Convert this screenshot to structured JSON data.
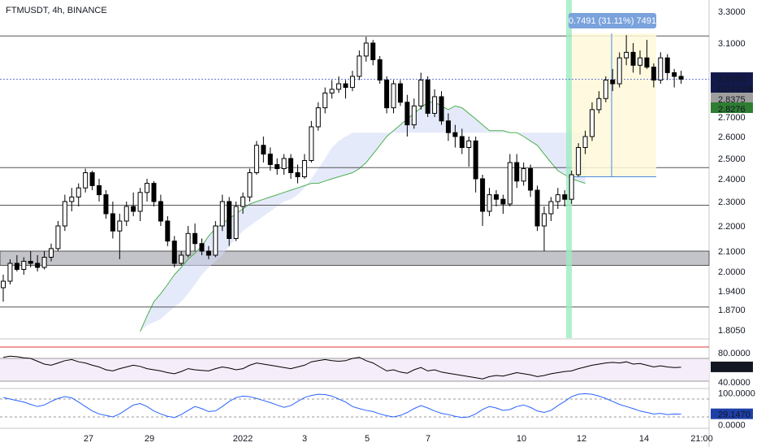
{
  "header": {
    "title": "FTMUSDT, 4h, BINANCE"
  },
  "colors": {
    "bull_fill": "#ffffff",
    "bear_fill": "#000000",
    "candle_border": "#000000",
    "cloud_green": "#4caf50",
    "cloud_fill": "#cfd8f5",
    "zone_fill": "#a9a9b3",
    "highlight_band": "#9eebc0",
    "measure_fill": "#fff9d9",
    "measure_line": "#4a8bdb",
    "rsi_line": "#000000",
    "rsi_top": "#e53935",
    "stoch_line": "#2962ff",
    "last_price": "#131a4a",
    "cloud_tag": "#2e7d32",
    "base_tag": "#9e9e9e",
    "pane_border": "#c7c7c7"
  },
  "chart_data": {
    "type": "candlestick",
    "symbol": "FTMUSDT",
    "interval": "4h",
    "exchange": "BINANCE",
    "price_axis": {
      "ticks": [
        "3.3000",
        "3.1000",
        "2.7000",
        "2.6000",
        "2.5000",
        "2.4000",
        "2.3000",
        "2.2000",
        "2.1000",
        "2.0000",
        "1.9400",
        "1.8700",
        "1.8050"
      ]
    },
    "time_axis": {
      "ticks": [
        "27",
        "29",
        "2022",
        "3",
        "5",
        "7",
        "10",
        "12",
        "14",
        "21:00"
      ]
    },
    "horizontal_levels": [
      3.145,
      2.455,
      2.285,
      1.88
    ],
    "support_zone": [
      2.03,
      2.1
    ],
    "measure_label": "0.7491 (31.11%) 7491",
    "measure_range": {
      "from": 2.41,
      "to": 3.16
    },
    "price_labels": {
      "last": "2.9046",
      "countdown": "01:41:08",
      "base": "2.8375",
      "cloud": "2.8276"
    },
    "candles": [
      [
        1.95,
        1.99,
        1.9,
        1.97
      ],
      [
        1.97,
        2.06,
        1.96,
        2.04
      ],
      [
        2.04,
        2.08,
        2.0,
        2.01
      ],
      [
        2.01,
        2.07,
        1.99,
        2.05
      ],
      [
        2.05,
        2.1,
        2.02,
        2.04
      ],
      [
        2.04,
        2.08,
        2.0,
        2.02
      ],
      [
        2.02,
        2.1,
        2.01,
        2.07
      ],
      [
        2.07,
        2.13,
        2.05,
        2.11
      ],
      [
        2.11,
        2.22,
        2.1,
        2.2
      ],
      [
        2.2,
        2.33,
        2.18,
        2.3
      ],
      [
        2.3,
        2.36,
        2.26,
        2.32
      ],
      [
        2.32,
        2.38,
        2.28,
        2.36
      ],
      [
        2.36,
        2.45,
        2.34,
        2.43
      ],
      [
        2.43,
        2.44,
        2.35,
        2.37
      ],
      [
        2.37,
        2.4,
        2.3,
        2.33
      ],
      [
        2.33,
        2.35,
        2.23,
        2.25
      ],
      [
        2.25,
        2.3,
        2.15,
        2.18
      ],
      [
        2.18,
        2.25,
        2.06,
        2.22
      ],
      [
        2.22,
        2.3,
        2.2,
        2.28
      ],
      [
        2.28,
        2.34,
        2.24,
        2.26
      ],
      [
        2.26,
        2.36,
        2.22,
        2.34
      ],
      [
        2.34,
        2.4,
        2.3,
        2.38
      ],
      [
        2.38,
        2.39,
        2.28,
        2.3
      ],
      [
        2.3,
        2.33,
        2.2,
        2.22
      ],
      [
        2.22,
        2.24,
        2.12,
        2.14
      ],
      [
        2.14,
        2.16,
        2.02,
        2.04
      ],
      [
        2.04,
        2.1,
        2.03,
        2.08
      ],
      [
        2.08,
        2.2,
        2.07,
        2.17
      ],
      [
        2.17,
        2.21,
        2.1,
        2.13
      ],
      [
        2.13,
        2.15,
        2.08,
        2.1
      ],
      [
        2.1,
        2.12,
        2.06,
        2.08
      ],
      [
        2.08,
        2.22,
        2.07,
        2.2
      ],
      [
        2.2,
        2.33,
        2.18,
        2.3
      ],
      [
        2.3,
        2.32,
        2.12,
        2.15
      ],
      [
        2.15,
        2.3,
        2.14,
        2.28
      ],
      [
        2.28,
        2.34,
        2.25,
        2.32
      ],
      [
        2.32,
        2.45,
        2.3,
        2.43
      ],
      [
        2.43,
        2.58,
        2.42,
        2.56
      ],
      [
        2.56,
        2.6,
        2.48,
        2.52
      ],
      [
        2.52,
        2.55,
        2.44,
        2.47
      ],
      [
        2.47,
        2.5,
        2.42,
        2.45
      ],
      [
        2.45,
        2.52,
        2.42,
        2.5
      ],
      [
        2.5,
        2.52,
        2.4,
        2.43
      ],
      [
        2.43,
        2.47,
        2.38,
        2.41
      ],
      [
        2.41,
        2.52,
        2.4,
        2.49
      ],
      [
        2.49,
        2.68,
        2.48,
        2.65
      ],
      [
        2.65,
        2.78,
        2.63,
        2.75
      ],
      [
        2.75,
        2.86,
        2.72,
        2.83
      ],
      [
        2.83,
        2.9,
        2.8,
        2.85
      ],
      [
        2.85,
        2.92,
        2.83,
        2.88
      ],
      [
        2.88,
        2.9,
        2.8,
        2.86
      ],
      [
        2.86,
        2.95,
        2.84,
        2.92
      ],
      [
        2.92,
        3.06,
        2.9,
        3.03
      ],
      [
        3.03,
        3.14,
        3.0,
        3.1
      ],
      [
        3.1,
        3.12,
        2.98,
        3.01
      ],
      [
        3.01,
        3.03,
        2.88,
        2.9
      ],
      [
        2.9,
        2.92,
        2.72,
        2.75
      ],
      [
        2.75,
        2.9,
        2.72,
        2.88
      ],
      [
        2.88,
        2.9,
        2.76,
        2.78
      ],
      [
        2.78,
        2.82,
        2.6,
        2.66
      ],
      [
        2.66,
        2.8,
        2.64,
        2.76
      ],
      [
        2.76,
        2.94,
        2.74,
        2.9
      ],
      [
        2.9,
        2.92,
        2.7,
        2.72
      ],
      [
        2.72,
        2.85,
        2.7,
        2.81
      ],
      [
        2.81,
        2.84,
        2.66,
        2.68
      ],
      [
        2.68,
        2.72,
        2.58,
        2.62
      ],
      [
        2.62,
        2.66,
        2.55,
        2.6
      ],
      [
        2.6,
        2.64,
        2.52,
        2.55
      ],
      [
        2.55,
        2.6,
        2.46,
        2.58
      ],
      [
        2.58,
        2.6,
        2.34,
        2.4
      ],
      [
        2.4,
        2.42,
        2.2,
        2.26
      ],
      [
        2.26,
        2.36,
        2.24,
        2.33
      ],
      [
        2.33,
        2.35,
        2.28,
        2.31
      ],
      [
        2.31,
        2.33,
        2.25,
        2.29
      ],
      [
        2.29,
        2.52,
        2.28,
        2.48
      ],
      [
        2.48,
        2.52,
        2.36,
        2.39
      ],
      [
        2.39,
        2.48,
        2.37,
        2.45
      ],
      [
        2.45,
        2.47,
        2.32,
        2.35
      ],
      [
        2.35,
        2.37,
        2.18,
        2.2
      ],
      [
        2.2,
        2.28,
        2.1,
        2.25
      ],
      [
        2.25,
        2.32,
        2.22,
        2.3
      ],
      [
        2.3,
        2.36,
        2.27,
        2.33
      ],
      [
        2.33,
        2.35,
        2.28,
        2.31
      ],
      [
        2.31,
        2.44,
        2.29,
        2.42
      ],
      [
        2.42,
        2.57,
        2.41,
        2.55
      ],
      [
        2.55,
        2.63,
        2.52,
        2.6
      ],
      [
        2.6,
        2.78,
        2.58,
        2.74
      ],
      [
        2.74,
        2.84,
        2.72,
        2.8
      ],
      [
        2.8,
        2.92,
        2.78,
        2.9
      ],
      [
        2.9,
        2.96,
        2.84,
        2.88
      ],
      [
        2.88,
        3.05,
        2.86,
        3.02
      ],
      [
        3.02,
        3.15,
        2.98,
        3.05
      ],
      [
        3.05,
        3.1,
        2.94,
        2.98
      ],
      [
        2.98,
        3.06,
        2.93,
        3.02
      ],
      [
        3.02,
        3.12,
        2.96,
        2.97
      ],
      [
        2.97,
        2.99,
        2.86,
        2.9
      ],
      [
        2.9,
        3.05,
        2.88,
        3.02
      ],
      [
        3.02,
        3.04,
        2.9,
        2.94
      ],
      [
        2.94,
        2.96,
        2.86,
        2.92
      ],
      [
        2.92,
        2.95,
        2.88,
        2.9046
      ]
    ],
    "ichimoku": {
      "span_a": [
        1.8,
        1.85,
        1.9,
        1.93,
        1.96,
        1.99,
        2.02,
        2.06,
        2.09,
        2.12,
        2.16,
        2.19,
        2.21,
        2.23,
        2.25,
        2.27,
        2.29,
        2.3,
        2.31,
        2.32,
        2.33,
        2.34,
        2.35,
        2.36,
        2.37,
        2.38,
        2.38,
        2.39,
        2.4,
        2.41,
        2.42,
        2.43,
        2.45,
        2.48,
        2.52,
        2.56,
        2.6,
        2.63,
        2.66,
        2.69,
        2.72,
        2.75,
        2.78,
        2.78,
        2.76,
        2.74,
        2.76,
        2.75,
        2.72,
        2.69,
        2.66,
        2.63,
        2.63,
        2.63,
        2.62,
        2.62,
        2.6,
        2.58,
        2.56,
        2.52,
        2.48,
        2.44,
        2.42,
        2.4,
        2.39,
        2.38
      ],
      "span_b": [
        1.8,
        1.82,
        1.83,
        1.84,
        1.86,
        1.88,
        1.9,
        1.93,
        1.96,
        1.99,
        2.02,
        2.05,
        2.08,
        2.12,
        2.15,
        2.18,
        2.2,
        2.22,
        2.24,
        2.26,
        2.28,
        2.3,
        2.31,
        2.33,
        2.36,
        2.4,
        2.45,
        2.5,
        2.55,
        2.58,
        2.6,
        2.62,
        2.62,
        2.62,
        2.62,
        2.62,
        2.62,
        2.62,
        2.62,
        2.62,
        2.62,
        2.62,
        2.62,
        2.62,
        2.62,
        2.62,
        2.62,
        2.62,
        2.62,
        2.62,
        2.62,
        2.62,
        2.62,
        2.62,
        2.62,
        2.62,
        2.62,
        2.62,
        2.62,
        2.62,
        2.62,
        2.62,
        2.62,
        2.62,
        2.62,
        2.62
      ]
    },
    "rsi": {
      "ticks": [
        "80.0000",
        "40.0000"
      ],
      "value_label": "54.4062",
      "bands": [
        70,
        30
      ],
      "values": [
        72,
        74,
        73,
        71,
        70,
        65,
        60,
        58,
        62,
        66,
        68,
        64,
        62,
        58,
        55,
        50,
        48,
        52,
        55,
        58,
        56,
        52,
        50,
        48,
        45,
        43,
        47,
        52,
        50,
        49,
        48,
        52,
        55,
        53,
        50,
        52,
        58,
        62,
        60,
        58,
        56,
        54,
        52,
        55,
        58,
        64,
        66,
        68,
        66,
        65,
        66,
        70,
        72,
        66,
        62,
        55,
        48,
        50,
        46,
        44,
        50,
        54,
        48,
        50,
        46,
        44,
        42,
        40,
        38,
        36,
        34,
        38,
        40,
        39,
        42,
        45,
        43,
        41,
        38,
        40,
        43,
        45,
        47,
        48,
        52,
        55,
        58,
        60,
        62,
        63,
        62,
        64,
        60,
        61,
        58,
        55,
        57,
        55,
        54,
        54.4062
      ]
    },
    "stoch": {
      "ticks": [
        "100.0000",
        "0.0000"
      ],
      "value_label": "29.1470",
      "bands": [
        80,
        20
      ],
      "values": [
        85,
        80,
        75,
        70,
        62,
        55,
        60,
        72,
        82,
        88,
        84,
        70,
        55,
        40,
        30,
        25,
        20,
        30,
        45,
        60,
        65,
        55,
        40,
        30,
        22,
        18,
        28,
        42,
        55,
        48,
        38,
        40,
        55,
        72,
        85,
        90,
        88,
        82,
        75,
        68,
        60,
        52,
        58,
        72,
        85,
        92,
        96,
        95,
        90,
        80,
        70,
        55,
        48,
        42,
        38,
        30,
        24,
        20,
        25,
        35,
        48,
        58,
        50,
        40,
        32,
        28,
        22,
        18,
        20,
        30,
        45,
        55,
        50,
        42,
        45,
        55,
        60,
        52,
        40,
        35,
        42,
        58,
        72,
        88,
        96,
        98,
        96,
        90,
        82,
        72,
        62,
        55,
        48,
        40,
        35,
        30,
        32,
        28,
        30,
        29.147
      ]
    }
  }
}
